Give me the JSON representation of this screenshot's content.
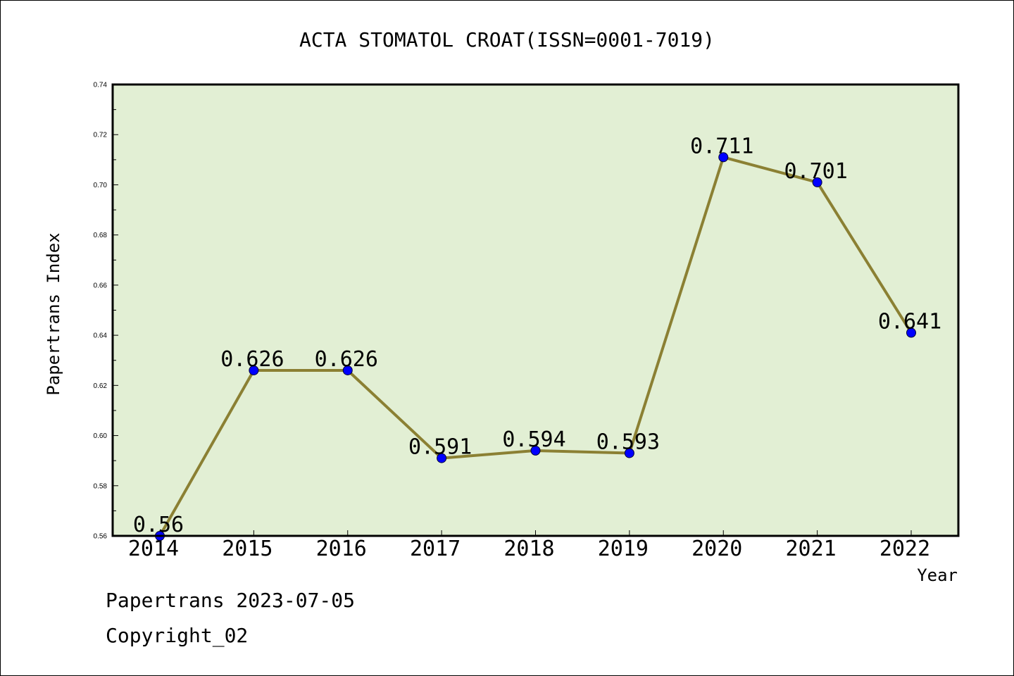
{
  "chart_data": {
    "type": "line",
    "title": "ACTA STOMATOL CROAT(ISSN=0001-7019)",
    "xlabel": "Year",
    "ylabel": "Papertrans Index",
    "categories": [
      "2014",
      "2015",
      "2016",
      "2017",
      "2018",
      "2019",
      "2020",
      "2021",
      "2022"
    ],
    "series": [
      {
        "values": [
          0.56,
          0.626,
          0.626,
          0.591,
          0.594,
          0.593,
          0.711,
          0.701,
          0.641
        ],
        "labels": [
          "0.56",
          "0.626",
          "0.626",
          "0.591",
          "0.594",
          "0.593",
          "0.711",
          "0.701",
          "0.641"
        ],
        "line_color": "#8b8033",
        "marker_color": "#0000ff"
      }
    ],
    "ylim": [
      0.56,
      0.74
    ],
    "yticks": [
      "0.56",
      "0.58",
      "0.60",
      "0.62",
      "0.64",
      "0.66",
      "0.68",
      "0.70",
      "0.72",
      "0.74"
    ],
    "plot_background": "#e2efd4",
    "grid": false,
    "legend": "none"
  },
  "footer": {
    "line1": "Papertrans 2023-07-05",
    "line2": "Copyright_02"
  }
}
